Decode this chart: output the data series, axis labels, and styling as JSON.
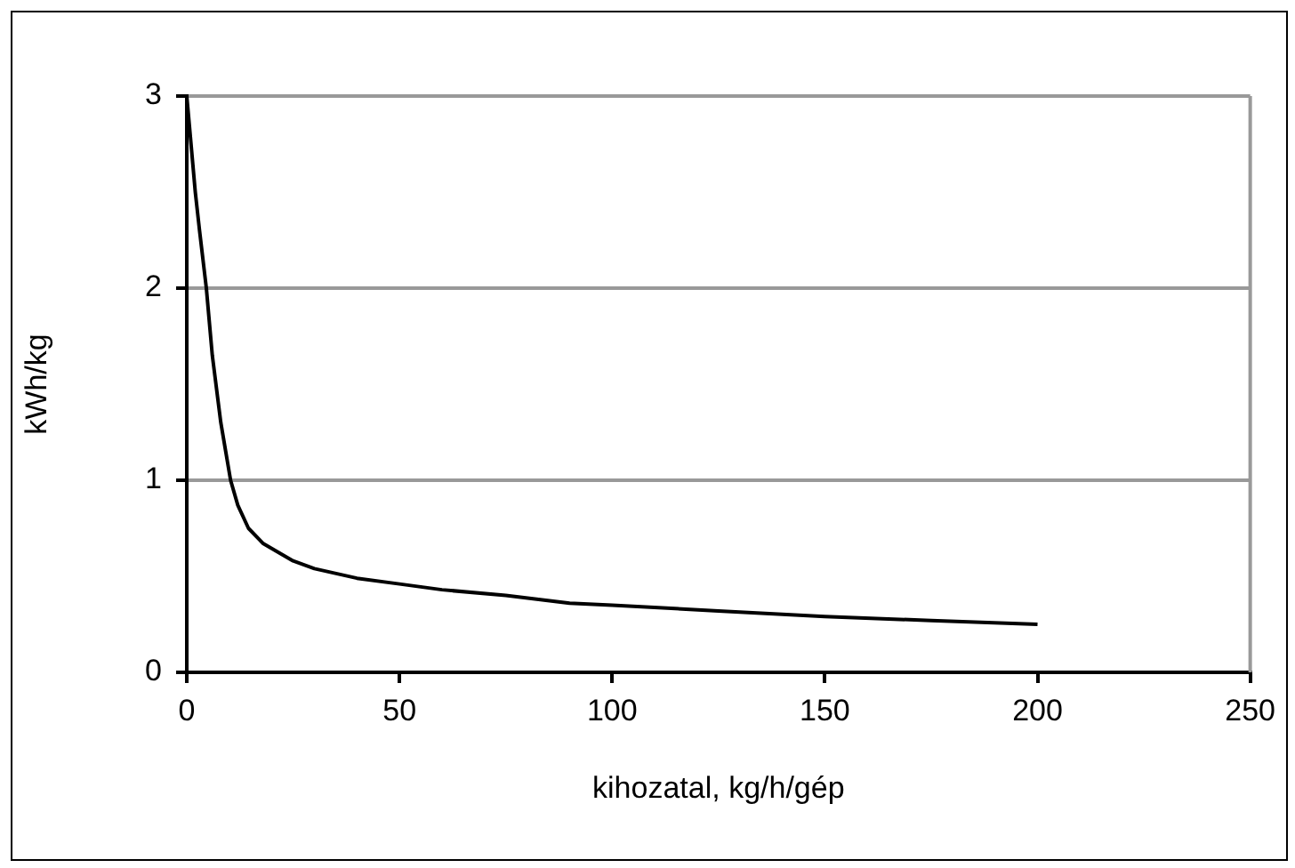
{
  "chart_data": {
    "type": "line",
    "xlabel": "kihozatal, kg/h/gép",
    "ylabel": "kWh/kg",
    "x": [
      0,
      1,
      2,
      3,
      4.6,
      6,
      8,
      10.3,
      12,
      14.5,
      18,
      25,
      30,
      40,
      50,
      60,
      75,
      90,
      100,
      125,
      150,
      175,
      200
    ],
    "series": [
      {
        "color": "#000000",
        "values": [
          3,
          2.75,
          2.5,
          2.3,
          2,
          1.65,
          1.3,
          1,
          0.87,
          0.75,
          0.67,
          0.58,
          0.54,
          0.49,
          0.46,
          0.43,
          0.4,
          0.36,
          0.35,
          0.32,
          0.29,
          0.27,
          0.25
        ]
      }
    ],
    "xlim": [
      0,
      250
    ],
    "xticks": [
      0,
      50,
      100,
      150,
      200,
      250
    ],
    "ylim": [
      0,
      3
    ],
    "yticks": [
      0,
      1,
      2,
      3
    ],
    "grid": "y",
    "legend": false,
    "marker": "none",
    "line_style": "solid"
  }
}
